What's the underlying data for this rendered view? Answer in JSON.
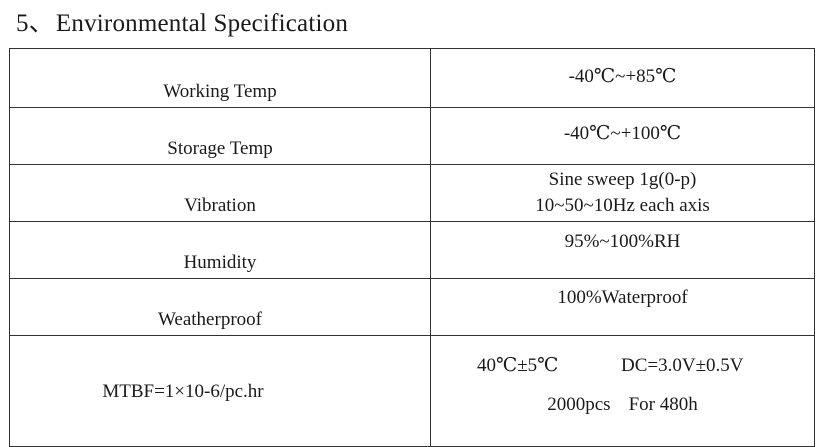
{
  "section": {
    "number": "5、",
    "title": "Environmental Specification"
  },
  "rows": [
    {
      "label": "Working Temp",
      "value": [
        "-40℃~+85℃"
      ]
    },
    {
      "label": "Storage Temp",
      "value": [
        "-40℃~+100℃"
      ]
    },
    {
      "label": "Vibration",
      "value": [
        "Sine sweep 1g(0-p)",
        "10~50~10Hz each axis"
      ]
    },
    {
      "label": "Humidity",
      "value": [
        "95%~100%RH"
      ]
    },
    {
      "label": "Weatherproof",
      "value": [
        "100%Waterproof"
      ]
    }
  ],
  "mtbf": {
    "label": "MTBF=1×10-6/pc.hr",
    "temp": "40℃±5℃",
    "voltage": "DC=3.0V±0.5V",
    "quantity": "2000pcs",
    "duration": "For 480h"
  }
}
